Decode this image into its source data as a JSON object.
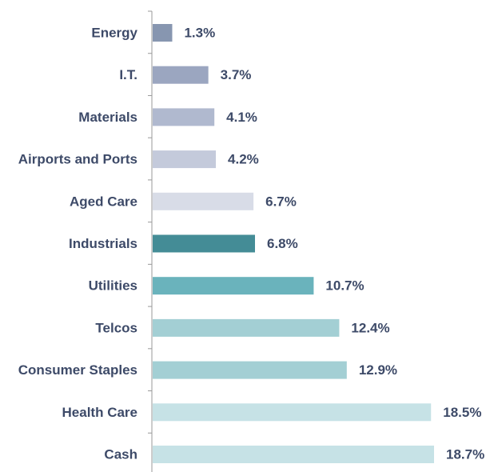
{
  "chart_data": {
    "type": "barh",
    "categories": [
      "Energy",
      "I.T.",
      "Materials",
      "Airports and Ports",
      "Aged Care",
      "Industrials",
      "Utilities",
      "Telcos",
      "Consumer Staples",
      "Health Care",
      "Cash"
    ],
    "values": [
      1.3,
      3.7,
      4.1,
      4.2,
      6.7,
      6.8,
      10.7,
      12.4,
      12.9,
      18.5,
      18.7
    ],
    "value_labels": [
      "1.3%",
      "3.7%",
      "4.1%",
      "4.2%",
      "6.7%",
      "6.8%",
      "10.7%",
      "12.4%",
      "12.9%",
      "18.5%",
      "18.7%"
    ],
    "colors": [
      "#8796b0",
      "#9ba6c0",
      "#b0b9cf",
      "#c4cadb",
      "#d8dce7",
      "#448c96",
      "#6ab3bc",
      "#a3cfd4",
      "#a3cfd4",
      "#c6e2e6",
      "#c6e2e6"
    ]
  }
}
